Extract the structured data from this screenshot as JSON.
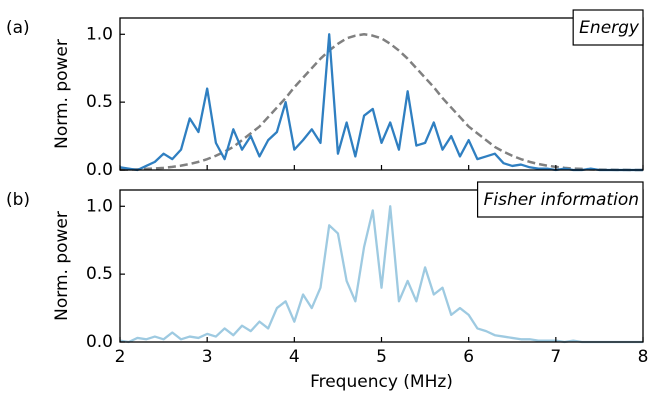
{
  "chart_data": [
    {
      "type": "line",
      "panel_label": "(a)",
      "label": "Energy",
      "ylabel": "Norm. power",
      "x": [
        2.0,
        2.1,
        2.2,
        2.3,
        2.4,
        2.5,
        2.6,
        2.7,
        2.8,
        2.9,
        3.0,
        3.1,
        3.2,
        3.3,
        3.4,
        3.5,
        3.6,
        3.7,
        3.8,
        3.9,
        4.0,
        4.1,
        4.2,
        4.3,
        4.4,
        4.5,
        4.6,
        4.7,
        4.8,
        4.9,
        5.0,
        5.1,
        5.2,
        5.3,
        5.4,
        5.5,
        5.6,
        5.7,
        5.8,
        5.9,
        6.0,
        6.1,
        6.2,
        6.3,
        6.4,
        6.5,
        6.6,
        6.7,
        6.8,
        6.9,
        7.0,
        7.1,
        7.2,
        7.3,
        7.4,
        7.5,
        7.6,
        7.7,
        7.8,
        7.9,
        8.0
      ],
      "series": [
        {
          "color": "#2f7fc1",
          "dashed": false,
          "values": [
            0.02,
            0.01,
            0.0,
            0.03,
            0.06,
            0.12,
            0.08,
            0.15,
            0.38,
            0.28,
            0.6,
            0.2,
            0.08,
            0.3,
            0.15,
            0.25,
            0.1,
            0.22,
            0.28,
            0.5,
            0.15,
            0.22,
            0.3,
            0.2,
            1.0,
            0.12,
            0.35,
            0.1,
            0.4,
            0.45,
            0.2,
            0.35,
            0.15,
            0.58,
            0.18,
            0.2,
            0.35,
            0.15,
            0.25,
            0.1,
            0.22,
            0.08,
            0.1,
            0.12,
            0.05,
            0.03,
            0.04,
            0.02,
            0.01,
            0.01,
            0.0,
            0.01,
            0.0,
            0.0,
            0.01,
            0.0,
            0.0,
            0.0,
            0.0,
            0.0,
            0.0
          ]
        },
        {
          "color": "#808080",
          "dashed": true,
          "values": [
            0.002,
            0.003,
            0.005,
            0.008,
            0.011,
            0.016,
            0.023,
            0.032,
            0.044,
            0.06,
            0.08,
            0.105,
            0.135,
            0.17,
            0.22,
            0.27,
            0.32,
            0.39,
            0.46,
            0.53,
            0.61,
            0.68,
            0.75,
            0.82,
            0.88,
            0.93,
            0.97,
            0.99,
            1,
            0.99,
            0.97,
            0.93,
            0.88,
            0.82,
            0.75,
            0.68,
            0.61,
            0.53,
            0.46,
            0.39,
            0.32,
            0.27,
            0.22,
            0.17,
            0.135,
            0.105,
            0.08,
            0.06,
            0.044,
            0.032,
            0.023,
            0.016,
            0.011,
            0.008,
            0.005,
            0.003,
            0.002,
            0.001,
            0.001,
            0,
            0
          ]
        }
      ],
      "xlim": [
        2,
        8
      ],
      "xticks": [
        2,
        3,
        4,
        5,
        6,
        7,
        8
      ],
      "xtick_labels": false,
      "ylim": [
        0,
        1.12
      ],
      "yticks": [
        {
          "value": 0,
          "label": "0.0"
        },
        {
          "value": 0.5,
          "label": "0.5"
        },
        {
          "value": 1,
          "label": "1.0"
        }
      ]
    },
    {
      "type": "line",
      "panel_label": "(b)",
      "label": "Fisher information",
      "ylabel": "Norm. power",
      "xlabel": "Frequency (MHz)",
      "x": [
        2.0,
        2.1,
        2.2,
        2.3,
        2.4,
        2.5,
        2.6,
        2.7,
        2.8,
        2.9,
        3.0,
        3.1,
        3.2,
        3.3,
        3.4,
        3.5,
        3.6,
        3.7,
        3.8,
        3.9,
        4.0,
        4.1,
        4.2,
        4.3,
        4.4,
        4.5,
        4.6,
        4.7,
        4.8,
        4.9,
        5.0,
        5.1,
        5.2,
        5.3,
        5.4,
        5.5,
        5.6,
        5.7,
        5.8,
        5.9,
        6.0,
        6.1,
        6.2,
        6.3,
        6.4,
        6.5,
        6.6,
        6.7,
        6.8,
        6.9,
        7.0,
        7.1,
        7.2,
        7.3,
        7.4,
        7.5,
        7.6,
        7.7,
        7.8,
        7.9,
        8.0
      ],
      "series": [
        {
          "color": "#9ecae1",
          "dashed": false,
          "values": [
            0.01,
            0.0,
            0.03,
            0.02,
            0.04,
            0.02,
            0.07,
            0.02,
            0.04,
            0.03,
            0.06,
            0.04,
            0.1,
            0.05,
            0.12,
            0.08,
            0.15,
            0.1,
            0.25,
            0.3,
            0.15,
            0.35,
            0.25,
            0.4,
            0.86,
            0.8,
            0.45,
            0.3,
            0.7,
            0.97,
            0.4,
            1.0,
            0.3,
            0.45,
            0.3,
            0.55,
            0.35,
            0.4,
            0.2,
            0.25,
            0.2,
            0.1,
            0.08,
            0.05,
            0.04,
            0.03,
            0.02,
            0.02,
            0.01,
            0.01,
            0.01,
            0.0,
            0.01,
            0.0,
            0.0,
            0.0,
            0.0,
            0.0,
            0.0,
            0.0,
            0.0
          ]
        }
      ],
      "xlim": [
        2,
        8
      ],
      "xticks": [
        2,
        3,
        4,
        5,
        6,
        7,
        8
      ],
      "xtick_labels": true,
      "ylim": [
        0,
        1.12
      ],
      "yticks": [
        {
          "value": 0,
          "label": "0.0"
        },
        {
          "value": 0.5,
          "label": "0.5"
        },
        {
          "value": 1,
          "label": "1.0"
        }
      ]
    }
  ]
}
